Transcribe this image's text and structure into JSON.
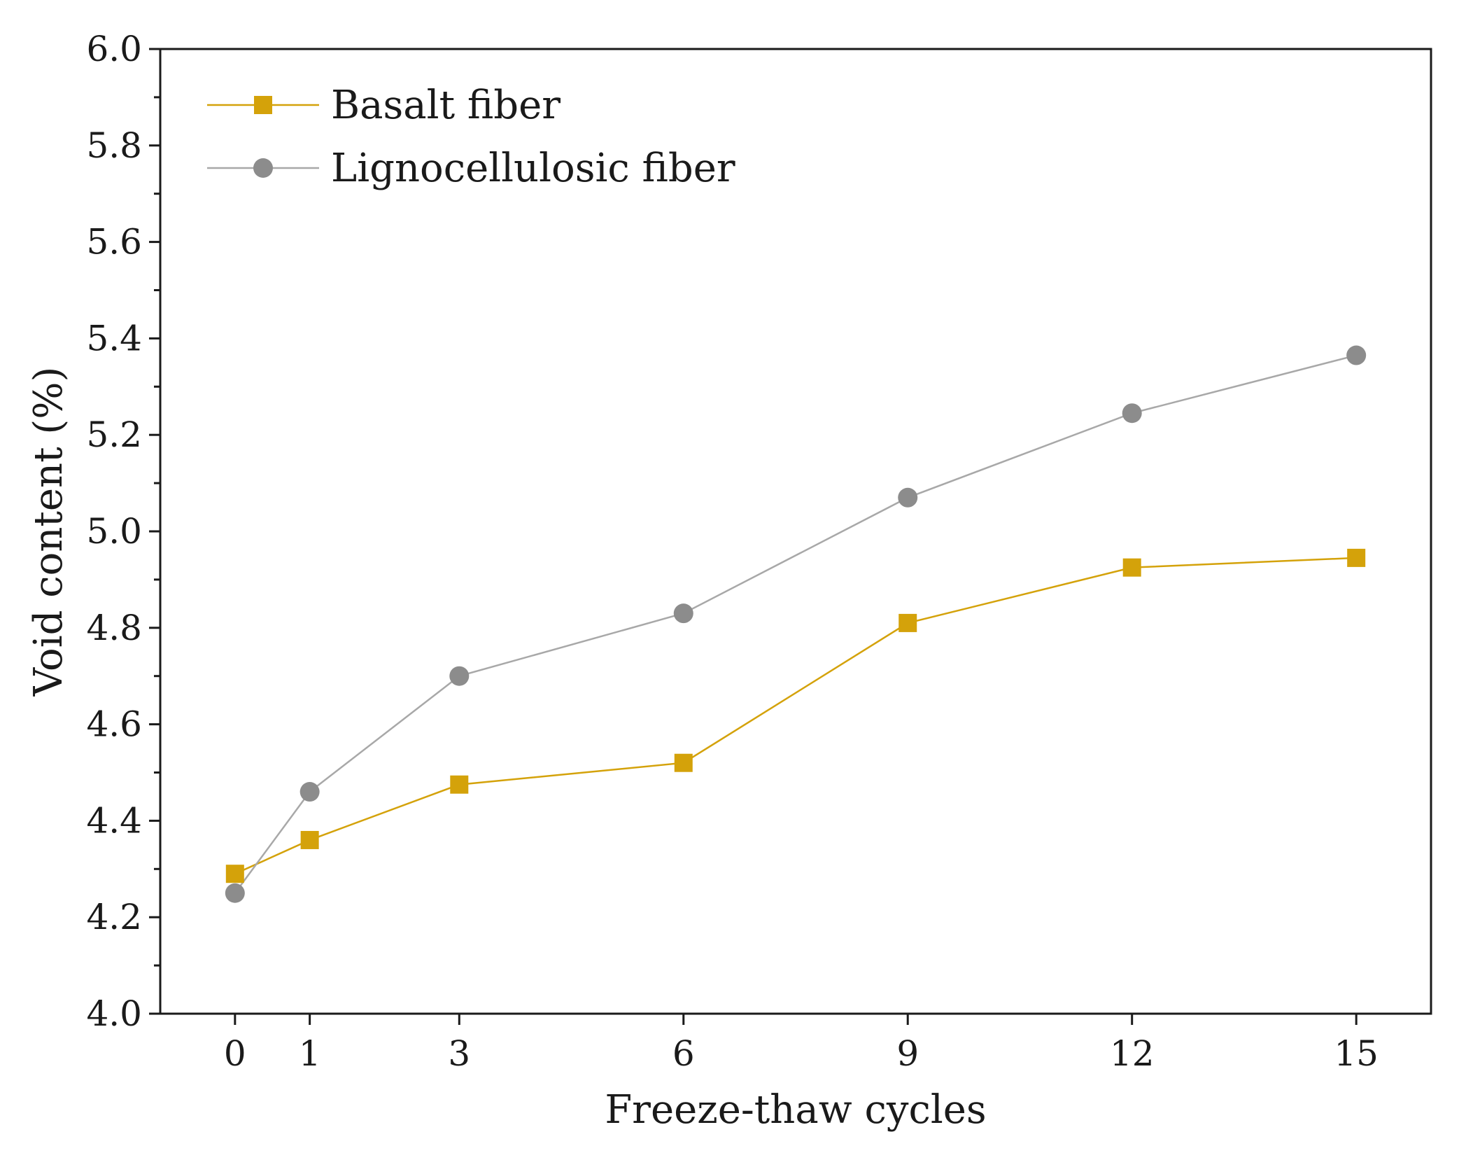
{
  "chart_data": {
    "type": "line",
    "title": "",
    "xlabel": "Freeze-thaw cycles",
    "ylabel": "Void content (%)",
    "x": [
      0,
      1,
      3,
      6,
      9,
      12,
      15
    ],
    "x_tick_labels": [
      "0",
      "1",
      "3",
      "6",
      "9",
      "12",
      "15"
    ],
    "xlim": [
      -1,
      16
    ],
    "ylim": [
      4.0,
      6.0
    ],
    "y_ticks": [
      4.0,
      4.2,
      4.4,
      4.6,
      4.8,
      5.0,
      5.2,
      5.4,
      5.6,
      5.8,
      6.0
    ],
    "y_tick_labels": [
      "4.0",
      "4.2",
      "4.4",
      "4.6",
      "4.8",
      "5.0",
      "5.2",
      "5.4",
      "5.6",
      "5.8",
      "6.0"
    ],
    "grid": false,
    "legend_position": "top-left",
    "series": [
      {
        "name": "Basalt fiber",
        "marker": "square",
        "color": "#D4A20A",
        "line_color": "#D4A20A",
        "values": [
          4.29,
          4.36,
          4.475,
          4.52,
          4.81,
          4.925,
          4.945
        ]
      },
      {
        "name": "Lignocellulosic fiber",
        "marker": "circle",
        "color": "#8C8C8C",
        "line_color": "#A8A8A8",
        "values": [
          4.25,
          4.46,
          4.7,
          4.83,
          5.07,
          5.245,
          5.365
        ]
      }
    ]
  }
}
